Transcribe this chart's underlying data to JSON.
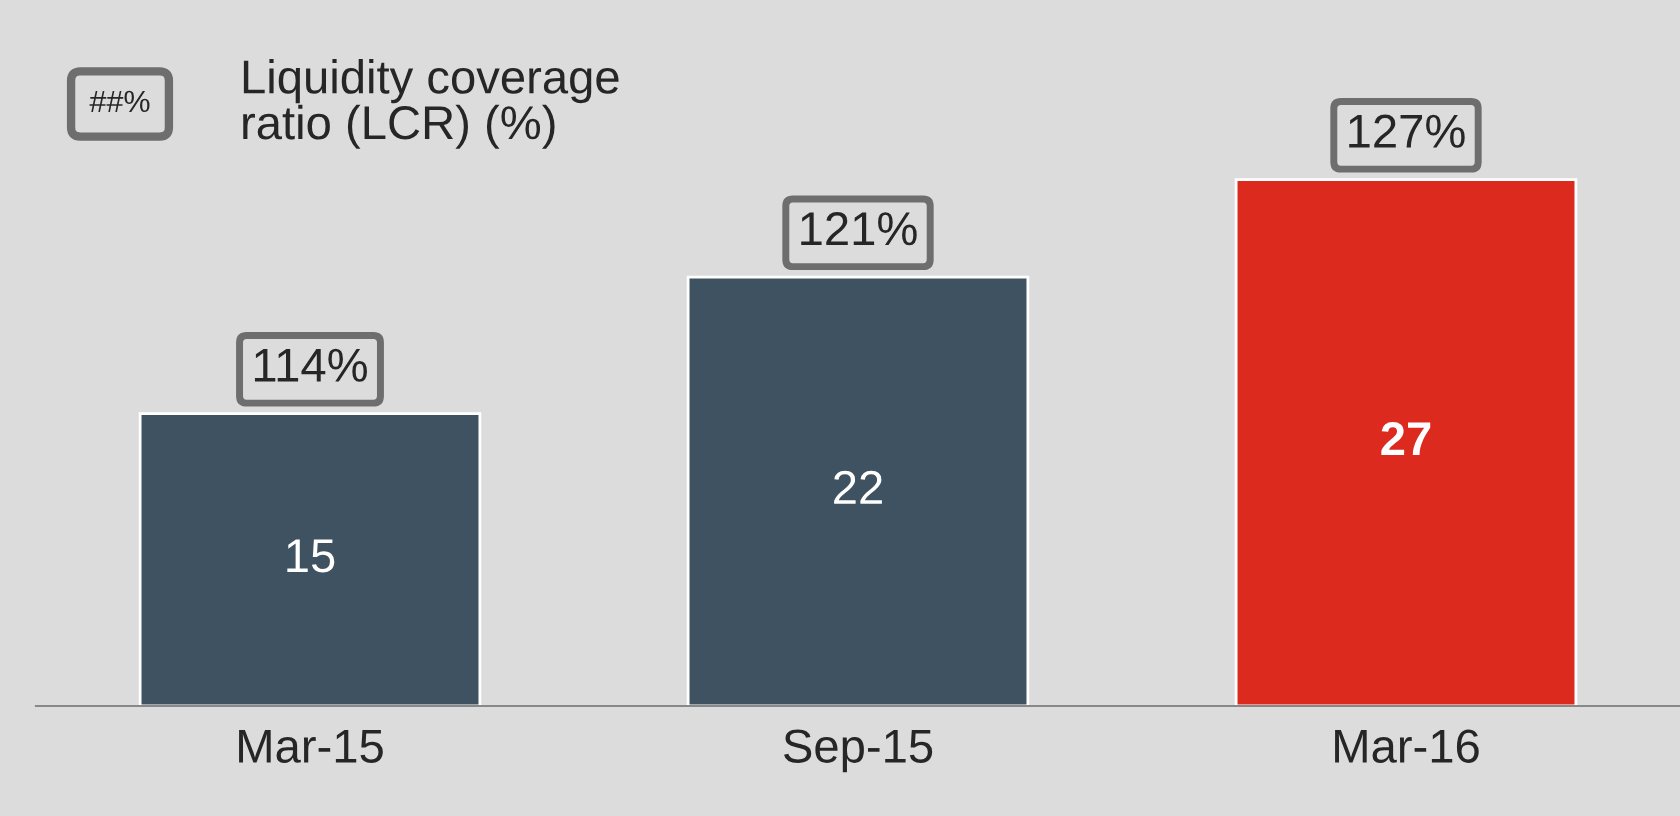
{
  "chart_data": {
    "type": "bar",
    "categories": [
      "Mar-15",
      "Sep-15",
      "Mar-16"
    ],
    "values": [
      15,
      22,
      27
    ],
    "colors": [
      "#3f5261",
      "#3f5261",
      "#dc2a1f"
    ],
    "data_labels": true,
    "ylim": [
      0,
      36
    ],
    "annotations": [
      "##%",
      "Liquidity coverage\nratio (LCR) (%)",
      {
        "text": "114%",
        "x": "Mar-15",
        "y": 15
      },
      {
        "text": "121%",
        "x": "Sep-15",
        "y": 22
      },
      {
        "text": "127%",
        "x": "Mar-16",
        "y": 27
      }
    ]
  }
}
